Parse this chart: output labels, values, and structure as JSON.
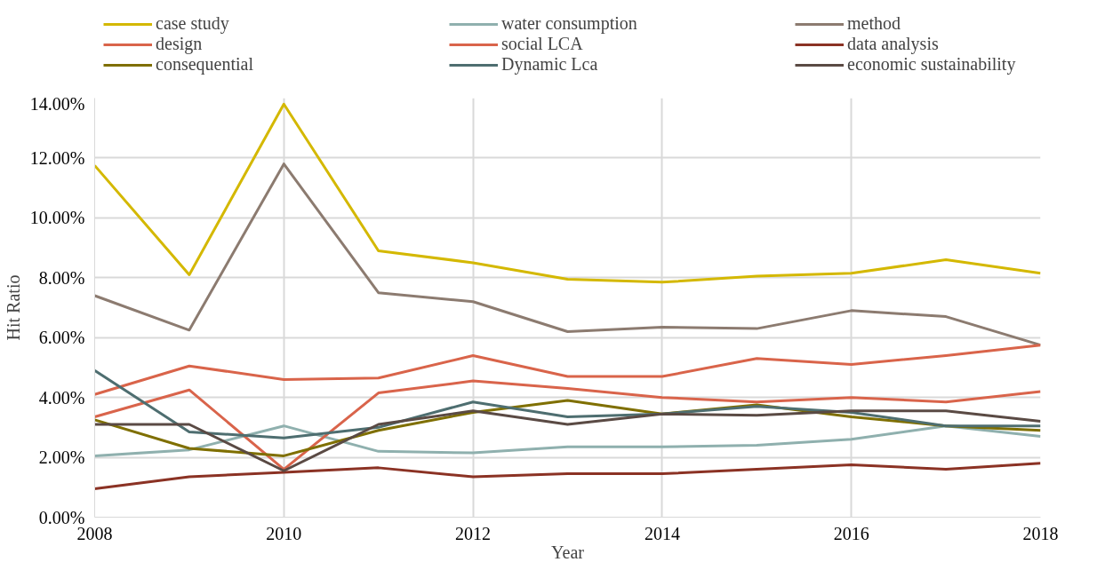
{
  "chart_data": {
    "type": "line",
    "xlabel": "Year",
    "ylabel": "Hit Ratio",
    "x": [
      2008,
      2009,
      2010,
      2011,
      2012,
      2013,
      2014,
      2015,
      2016,
      2017,
      2018
    ],
    "xlim": [
      2008,
      2018
    ],
    "xticks": [
      2008,
      2010,
      2012,
      2014,
      2016,
      2018
    ],
    "ylim": [
      0,
      14
    ],
    "yticks": [
      {
        "value": 0,
        "label": "0.00%"
      },
      {
        "value": 2,
        "label": "2.00%"
      },
      {
        "value": 4,
        "label": "4.00%"
      },
      {
        "value": 6,
        "label": "6.00%"
      },
      {
        "value": 8,
        "label": "8.00%"
      },
      {
        "value": 10,
        "label": "10.00%"
      },
      {
        "value": 12,
        "label": "12.00%"
      },
      {
        "value": 14,
        "label": "14.00%"
      }
    ],
    "grid": true,
    "legend": "top",
    "marker": "none",
    "line_style": "solid",
    "series": [
      {
        "name": "case study",
        "color": "#d4b800",
        "values": [
          11.75,
          8.1,
          13.8,
          8.9,
          8.5,
          7.95,
          7.85,
          8.05,
          8.15,
          8.6,
          8.15
        ]
      },
      {
        "name": "water consumption",
        "color": "#8fb0ae",
        "values": [
          2.05,
          2.25,
          3.05,
          2.2,
          2.15,
          2.35,
          2.35,
          2.4,
          2.6,
          3.05,
          2.7
        ]
      },
      {
        "name": "method",
        "color": "#8c7b70",
        "values": [
          7.4,
          6.25,
          11.8,
          7.5,
          7.2,
          6.2,
          6.35,
          6.3,
          6.9,
          6.7,
          5.75
        ]
      },
      {
        "name": "design",
        "color": "#d9644a",
        "values": [
          4.1,
          5.05,
          4.6,
          4.65,
          5.4,
          4.7,
          4.7,
          5.3,
          5.1,
          5.4,
          5.75
        ]
      },
      {
        "name": "social LCA",
        "color": "#d9644b",
        "values": [
          3.35,
          4.25,
          1.6,
          4.15,
          4.55,
          4.3,
          4.0,
          3.85,
          4.0,
          3.85,
          4.2
        ]
      },
      {
        "name": "data analysis",
        "color": "#8b3224",
        "values": [
          0.95,
          1.35,
          1.5,
          1.65,
          1.35,
          1.45,
          1.45,
          1.6,
          1.75,
          1.6,
          1.8
        ]
      },
      {
        "name": "consequential",
        "color": "#7f6f00",
        "values": [
          3.25,
          2.3,
          2.05,
          2.9,
          3.5,
          3.9,
          3.45,
          3.75,
          3.35,
          3.05,
          2.9
        ]
      },
      {
        "name": "Dynamic Lca",
        "color": "#4e6e70",
        "values": [
          4.9,
          2.85,
          2.65,
          3.0,
          3.85,
          3.35,
          3.45,
          3.7,
          3.5,
          3.05,
          3.05
        ]
      },
      {
        "name": "economic sustainability",
        "color": "#5a4a44",
        "values": [
          3.1,
          3.1,
          1.55,
          3.1,
          3.55,
          3.1,
          3.45,
          3.4,
          3.55,
          3.55,
          3.2
        ]
      }
    ]
  }
}
